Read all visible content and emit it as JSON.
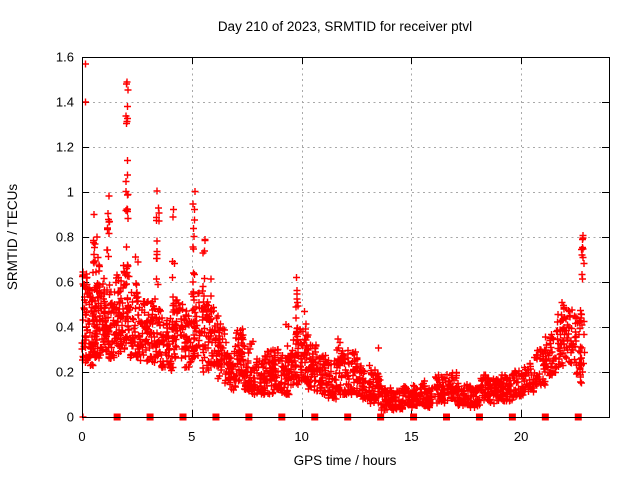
{
  "chart_data": {
    "type": "scatter",
    "title": "Day 210 of 2023, SRMTID for receiver ptvl",
    "xlabel": "GPS time / hours",
    "ylabel": "SRMTID / TECUs",
    "xlim": [
      0,
      24
    ],
    "ylim": [
      0,
      1.6
    ],
    "grid": true,
    "legend_position": "none",
    "xticks": {
      "values": [
        0,
        5,
        10,
        15,
        20
      ],
      "labels": [
        "0",
        "5",
        "10",
        "15",
        "20"
      ]
    },
    "yticks": {
      "values": [
        0,
        0.2,
        0.4,
        0.6,
        0.8,
        1.0,
        1.2,
        1.4,
        1.6
      ],
      "labels": [
        "0",
        "0.2",
        "0.4",
        "0.6",
        "0.8",
        "1",
        "1.2",
        "1.4",
        "1.6"
      ]
    },
    "colors": {
      "marker": "#ff0000",
      "grid": "#a8a8a8",
      "axis": "#000000",
      "background": "#ffffff",
      "text": "#000000"
    },
    "marker": {
      "shape": "plus",
      "size": 7
    },
    "series": [
      {
        "name": "srmtid-scatter",
        "render": "plus",
        "seed": 20231210,
        "bands": [
          [
            0.0,
            0.3,
            0.24,
            0.65,
            48
          ],
          [
            0.3,
            0.6,
            0.22,
            0.58,
            46
          ],
          [
            0.6,
            0.9,
            0.26,
            0.68,
            48
          ],
          [
            0.9,
            1.2,
            0.28,
            0.62,
            44
          ],
          [
            1.2,
            1.5,
            0.26,
            0.56,
            42
          ],
          [
            1.5,
            1.8,
            0.28,
            0.64,
            42
          ],
          [
            1.8,
            2.2,
            0.3,
            0.68,
            46
          ],
          [
            2.2,
            2.6,
            0.26,
            0.56,
            42
          ],
          [
            2.6,
            3.0,
            0.24,
            0.52,
            42
          ],
          [
            3.0,
            3.4,
            0.24,
            0.55,
            42
          ],
          [
            3.4,
            3.8,
            0.22,
            0.48,
            40
          ],
          [
            3.8,
            4.2,
            0.2,
            0.44,
            40
          ],
          [
            4.2,
            4.6,
            0.26,
            0.52,
            38
          ],
          [
            4.6,
            5.0,
            0.22,
            0.48,
            38
          ],
          [
            5.0,
            5.4,
            0.26,
            0.58,
            40
          ],
          [
            5.4,
            5.8,
            0.2,
            0.52,
            40
          ],
          [
            5.8,
            6.2,
            0.22,
            0.5,
            40
          ],
          [
            6.2,
            6.6,
            0.15,
            0.42,
            40
          ],
          [
            6.6,
            7.0,
            0.12,
            0.32,
            38
          ],
          [
            7.0,
            7.4,
            0.15,
            0.4,
            38
          ],
          [
            7.4,
            7.8,
            0.1,
            0.34,
            38
          ],
          [
            7.8,
            8.3,
            0.1,
            0.26,
            42
          ],
          [
            8.3,
            8.7,
            0.1,
            0.3,
            40
          ],
          [
            8.7,
            9.1,
            0.12,
            0.3,
            40
          ],
          [
            9.1,
            9.5,
            0.1,
            0.28,
            40
          ],
          [
            9.5,
            9.9,
            0.14,
            0.38,
            42
          ],
          [
            9.9,
            10.3,
            0.15,
            0.4,
            42
          ],
          [
            10.3,
            10.7,
            0.12,
            0.32,
            40
          ],
          [
            10.7,
            11.1,
            0.1,
            0.28,
            40
          ],
          [
            11.1,
            11.6,
            0.08,
            0.26,
            42
          ],
          [
            11.6,
            12.1,
            0.1,
            0.3,
            42
          ],
          [
            12.1,
            12.6,
            0.1,
            0.3,
            42
          ],
          [
            12.6,
            13.1,
            0.08,
            0.24,
            42
          ],
          [
            13.1,
            13.6,
            0.06,
            0.22,
            42
          ],
          [
            13.6,
            14.1,
            0.03,
            0.14,
            42
          ],
          [
            14.1,
            14.6,
            0.03,
            0.12,
            42
          ],
          [
            14.6,
            15.1,
            0.04,
            0.14,
            42
          ],
          [
            15.1,
            15.6,
            0.05,
            0.17,
            42
          ],
          [
            15.6,
            16.1,
            0.04,
            0.14,
            42
          ],
          [
            16.1,
            16.6,
            0.06,
            0.19,
            42
          ],
          [
            16.6,
            17.1,
            0.07,
            0.2,
            42
          ],
          [
            17.1,
            17.6,
            0.05,
            0.15,
            42
          ],
          [
            17.6,
            18.1,
            0.04,
            0.14,
            42
          ],
          [
            18.1,
            18.6,
            0.07,
            0.19,
            42
          ],
          [
            18.6,
            19.1,
            0.06,
            0.17,
            42
          ],
          [
            19.1,
            19.6,
            0.07,
            0.19,
            42
          ],
          [
            19.6,
            20.1,
            0.09,
            0.21,
            40
          ],
          [
            20.1,
            20.6,
            0.11,
            0.25,
            38
          ],
          [
            20.6,
            21.1,
            0.14,
            0.3,
            38
          ],
          [
            21.1,
            21.6,
            0.18,
            0.38,
            38
          ],
          [
            21.6,
            22.1,
            0.22,
            0.46,
            38
          ],
          [
            22.1,
            22.5,
            0.24,
            0.48,
            32
          ],
          [
            22.5,
            22.9,
            0.15,
            0.45,
            26
          ]
        ],
        "streaks": [
          [
            0.55,
            0.6,
            1.0,
            10
          ],
          [
            0.75,
            0.55,
            0.82,
            8
          ],
          [
            1.2,
            0.58,
            1.0,
            12
          ],
          [
            2.05,
            0.55,
            1.3,
            16
          ],
          [
            2.05,
            1.3,
            1.52,
            8
          ],
          [
            2.5,
            0.48,
            0.75,
            7
          ],
          [
            3.45,
            0.5,
            1.01,
            13
          ],
          [
            4.15,
            0.42,
            0.97,
            11
          ],
          [
            5.1,
            0.4,
            1.03,
            16
          ],
          [
            5.55,
            0.45,
            0.85,
            9
          ],
          [
            5.85,
            0.4,
            0.64,
            7
          ],
          [
            6.25,
            0.28,
            0.48,
            7
          ],
          [
            7.3,
            0.25,
            0.44,
            9
          ],
          [
            8.6,
            0.2,
            0.36,
            7
          ],
          [
            9.35,
            0.2,
            0.44,
            7
          ],
          [
            9.8,
            0.3,
            0.63,
            14
          ],
          [
            10.15,
            0.25,
            0.47,
            8
          ],
          [
            11.7,
            0.18,
            0.35,
            7
          ],
          [
            12.5,
            0.18,
            0.33,
            7
          ],
          [
            13.5,
            0.12,
            0.35,
            7
          ],
          [
            21.9,
            0.3,
            0.52,
            9
          ],
          [
            22.7,
            0.17,
            0.55,
            10
          ],
          [
            22.8,
            0.6,
            0.83,
            11
          ]
        ],
        "points": [
          [
            0.15,
            1.57
          ],
          [
            0.15,
            1.4
          ],
          [
            0.05,
            0.0
          ]
        ]
      },
      {
        "name": "zero-line-squares",
        "render": "square",
        "y": 0,
        "x_start": 1.6,
        "x_step": 1.5,
        "count": 15
      }
    ]
  }
}
